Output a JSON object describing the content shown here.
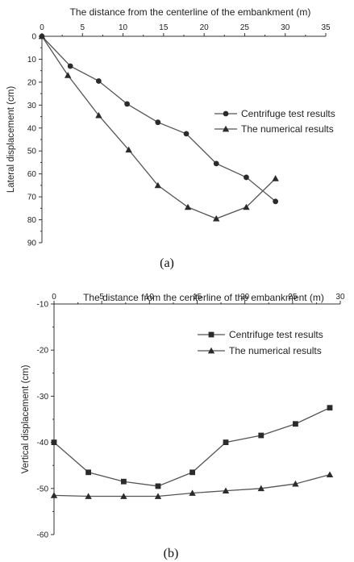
{
  "chart_data": [
    {
      "type": "line",
      "panel_label": "(a)",
      "xlabel": "The distance from the centerline of the embankment (m)",
      "ylabel": "Lateral displacement (cm)",
      "xlim": [
        0,
        35
      ],
      "ylim": [
        0,
        90
      ],
      "y_inverted": true,
      "x_axis_position": "top",
      "xticks": [
        "0",
        "5",
        "10",
        "15",
        "20",
        "25",
        "30",
        "35"
      ],
      "yticks": [
        "0",
        "10",
        "20",
        "30",
        "40",
        "50",
        "60",
        "70",
        "80",
        "90"
      ],
      "grid": false,
      "legend_position": "right",
      "series": [
        {
          "name": "Centrifuge test results",
          "marker": "circle",
          "x": [
            0,
            3.5,
            7.0,
            10.5,
            14.3,
            17.8,
            21.5,
            25.2,
            28.8
          ],
          "y": [
            0,
            13,
            19.5,
            29.5,
            37.5,
            42.5,
            55.5,
            61.5,
            72
          ]
        },
        {
          "name": "The numerical results",
          "marker": "triangle",
          "x": [
            0,
            3.2,
            7.0,
            10.7,
            14.3,
            18.0,
            21.5,
            25.2,
            28.8
          ],
          "y": [
            0,
            17,
            34.5,
            49.5,
            65,
            74.5,
            79.5,
            74.5,
            62
          ]
        }
      ]
    },
    {
      "type": "line",
      "panel_label": "(b)",
      "xlabel": "The distance from the centerline of the embankment (m)",
      "ylabel": "Vertical displacement (cm)",
      "xlim": [
        0,
        30
      ],
      "ylim": [
        -60,
        -10
      ],
      "x_axis_position": "top",
      "xticks": [
        "0",
        "5",
        "10",
        "15",
        "20",
        "25",
        "30"
      ],
      "yticks": [
        "-10",
        "-20",
        "-30",
        "-40",
        "-50",
        "-60"
      ],
      "grid": false,
      "legend_position": "right",
      "series": [
        {
          "name": "Centrifuge test results",
          "marker": "square",
          "x": [
            0,
            3.6,
            7.3,
            10.9,
            14.5,
            18.0,
            21.7,
            25.3,
            28.9
          ],
          "y": [
            -40,
            -46.5,
            -48.5,
            -49.5,
            -46.5,
            -40,
            -38.5,
            -36,
            -32.5
          ]
        },
        {
          "name": "The numerical results",
          "marker": "triangle",
          "x": [
            0,
            3.6,
            7.3,
            10.9,
            14.5,
            18.0,
            21.7,
            25.3,
            28.9
          ],
          "y": [
            -51.5,
            -51.7,
            -51.7,
            -51.7,
            -51.0,
            -50.5,
            -50.0,
            -49.0,
            -47.0
          ]
        }
      ]
    }
  ]
}
